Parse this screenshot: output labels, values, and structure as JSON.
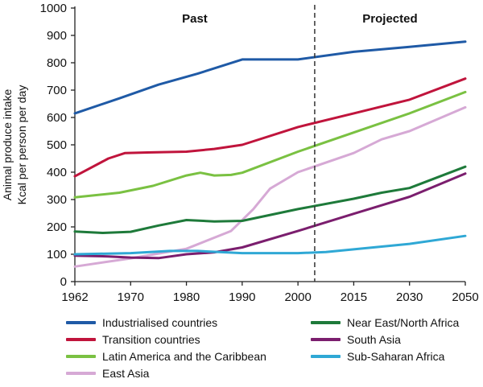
{
  "chart_data": {
    "type": "line",
    "title": "",
    "xlabel": "",
    "ylabel_lines": [
      "Animal produce intake",
      "Kcal per person per day"
    ],
    "ylim": [
      0,
      1000
    ],
    "yticks": [
      "0",
      "100",
      "200",
      "300",
      "400",
      "500",
      "600",
      "700",
      "800",
      "900",
      "1000"
    ],
    "x": [
      "1962",
      "1970",
      "1980",
      "1990",
      "2000",
      "2015",
      "2030",
      "2050"
    ],
    "past_label": "Past",
    "projected_label": "Projected",
    "divider_after": "2000",
    "grid": false,
    "legend_position": "bottom",
    "series": [
      {
        "name": "Industrialised countries",
        "color": "#1f5aa6",
        "points": [
          [
            0,
            615
          ],
          [
            0.8,
            670
          ],
          [
            1.5,
            720
          ],
          [
            2.2,
            760
          ],
          [
            3.0,
            812
          ],
          [
            4.0,
            812
          ],
          [
            5.0,
            840
          ],
          [
            6.0,
            858
          ],
          [
            7.0,
            877
          ]
        ]
      },
      {
        "name": "Transition countries",
        "color": "#c0143c",
        "points": [
          [
            0,
            385
          ],
          [
            0.6,
            450
          ],
          [
            0.9,
            470
          ],
          [
            1.3,
            472
          ],
          [
            2.0,
            475
          ],
          [
            2.5,
            485
          ],
          [
            3.0,
            500
          ],
          [
            4.0,
            565
          ],
          [
            5.0,
            615
          ],
          [
            6.0,
            665
          ],
          [
            7.0,
            742
          ]
        ]
      },
      {
        "name": "Latin America and the Caribbean",
        "color": "#7ac142",
        "points": [
          [
            0,
            308
          ],
          [
            0.8,
            325
          ],
          [
            1.4,
            350
          ],
          [
            2.0,
            388
          ],
          [
            2.25,
            398
          ],
          [
            2.5,
            388
          ],
          [
            2.8,
            390
          ],
          [
            3.0,
            398
          ],
          [
            4.0,
            475
          ],
          [
            5.0,
            545
          ],
          [
            6.0,
            615
          ],
          [
            7.0,
            693
          ]
        ]
      },
      {
        "name": "East Asia",
        "color": "#d6a9d5",
        "points": [
          [
            0,
            55
          ],
          [
            1.0,
            85
          ],
          [
            2.0,
            120
          ],
          [
            2.8,
            185
          ],
          [
            3.2,
            265
          ],
          [
            3.5,
            340
          ],
          [
            4.0,
            400
          ],
          [
            5.0,
            470
          ],
          [
            5.5,
            520
          ],
          [
            6.0,
            550
          ],
          [
            7.0,
            637
          ]
        ]
      },
      {
        "name": "Near East/North Africa",
        "color": "#1e7a3a",
        "points": [
          [
            0,
            183
          ],
          [
            0.5,
            178
          ],
          [
            1.0,
            182
          ],
          [
            1.5,
            205
          ],
          [
            2.0,
            225
          ],
          [
            2.5,
            220
          ],
          [
            3.0,
            222
          ],
          [
            4.0,
            265
          ],
          [
            5.0,
            303
          ],
          [
            5.5,
            325
          ],
          [
            6.0,
            342
          ],
          [
            7.0,
            420
          ]
        ]
      },
      {
        "name": "South Asia",
        "color": "#7b1e6e",
        "points": [
          [
            0,
            95
          ],
          [
            0.6,
            92
          ],
          [
            1.0,
            88
          ],
          [
            1.5,
            86
          ],
          [
            2.0,
            100
          ],
          [
            2.5,
            107
          ],
          [
            3.0,
            125
          ],
          [
            4.0,
            185
          ],
          [
            5.0,
            248
          ],
          [
            6.0,
            310
          ],
          [
            7.0,
            395
          ]
        ]
      },
      {
        "name": "Sub-Saharan Africa",
        "color": "#2fa8d5",
        "points": [
          [
            0,
            100
          ],
          [
            1.0,
            104
          ],
          [
            1.7,
            112
          ],
          [
            2.2,
            112
          ],
          [
            3.0,
            104
          ],
          [
            4.0,
            104
          ],
          [
            4.5,
            108
          ],
          [
            5.0,
            118
          ],
          [
            6.0,
            138
          ],
          [
            7.0,
            167
          ]
        ]
      }
    ]
  }
}
